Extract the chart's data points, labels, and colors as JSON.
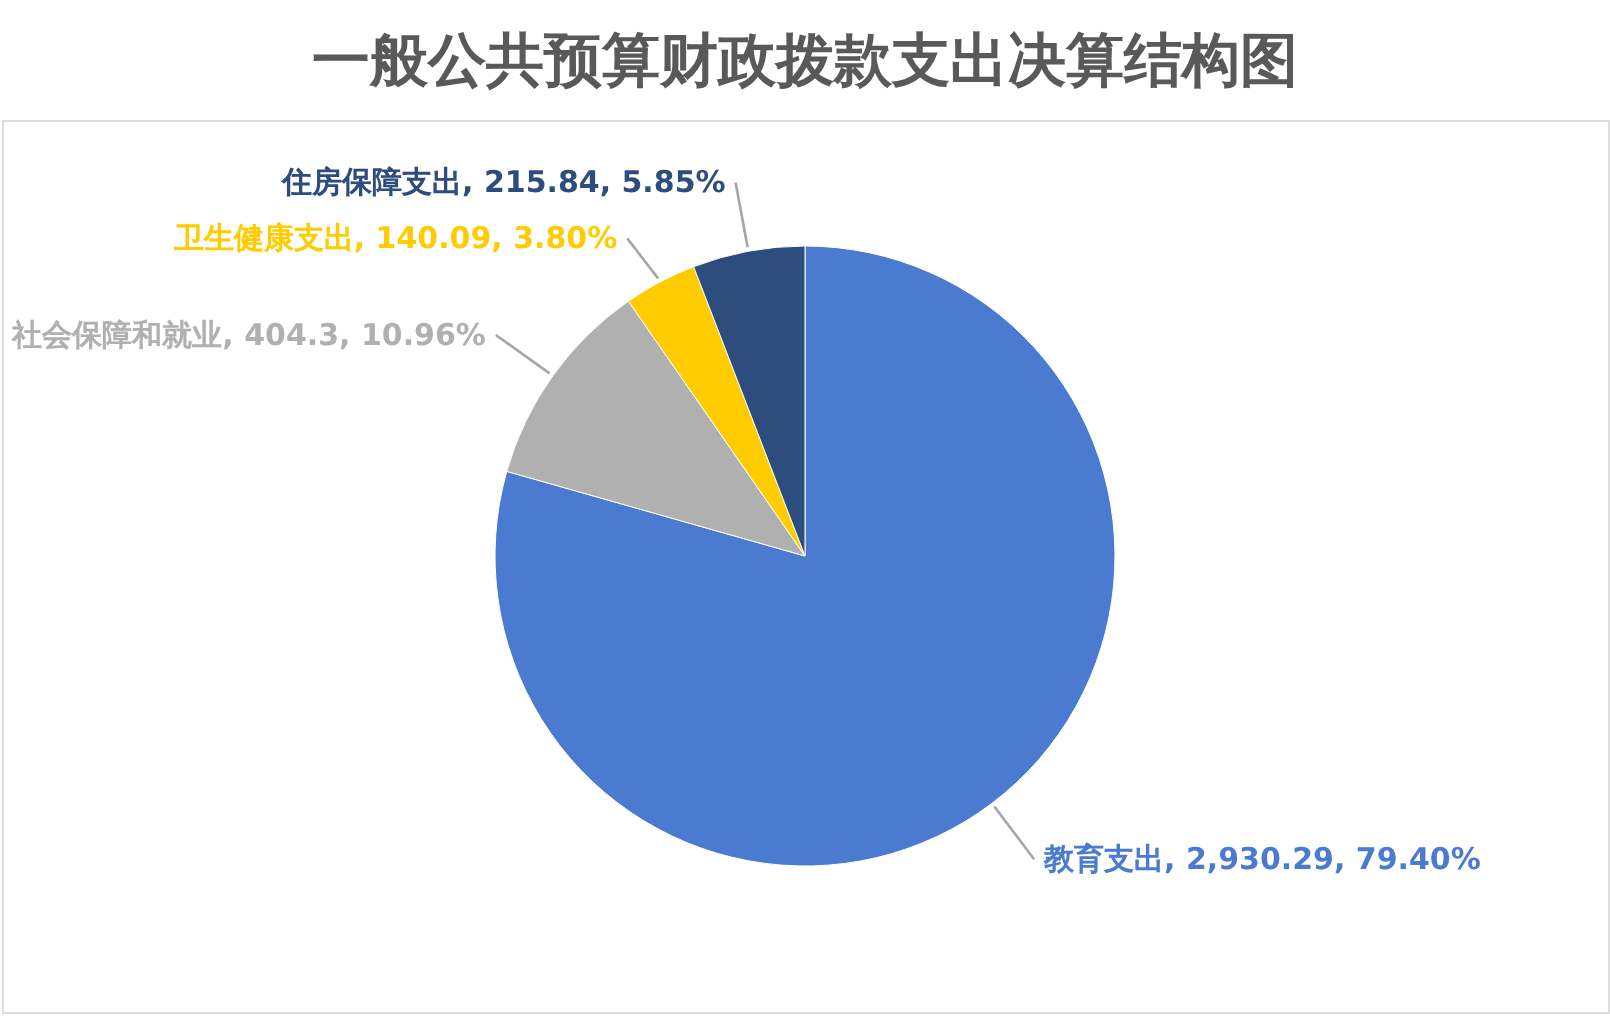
{
  "chart_data": {
    "type": "pie",
    "title": "一般公共预算财政拨款支出决算结构图",
    "categories": [
      "教育支出",
      "社会保障和就业",
      "卫生健康支出",
      "住房保障支出"
    ],
    "values": [
      2930.29,
      404.3,
      140.09,
      215.84
    ],
    "colors": [
      "#4a7bd0",
      "#b0b0b0",
      "#ffcc00",
      "#2e4d7f"
    ],
    "value_labels": [
      "2,930.29, 79.40%",
      "404.3, 10.96%",
      "140.09, 3.80%",
      "215.84, 5.85%"
    ]
  }
}
